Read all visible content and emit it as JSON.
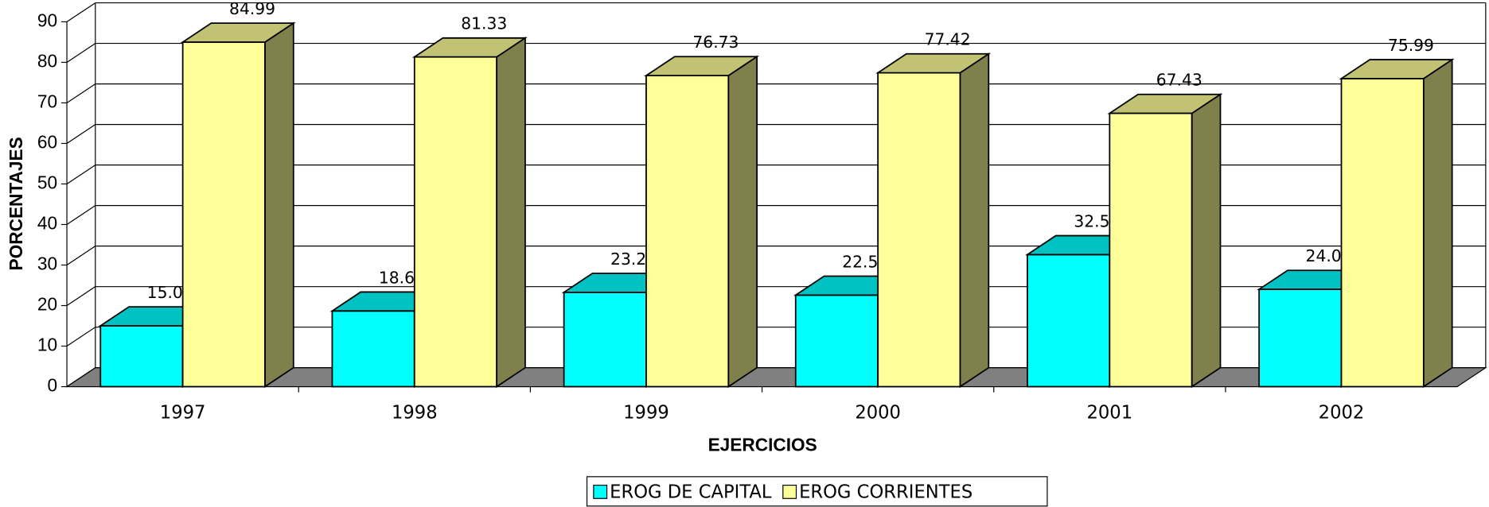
{
  "chart_data": {
    "type": "bar3d",
    "xlabel": "EJERCICIOS",
    "ylabel": "PORCENTAJES",
    "categories": [
      "1997",
      "1998",
      "1999",
      "2000",
      "2001",
      "2002"
    ],
    "series": [
      {
        "name": "EROG DE CAPITAL",
        "color": "#00ffff",
        "values": [
          15.01,
          18.67,
          23.27,
          22.58,
          32.57,
          24.01
        ]
      },
      {
        "name": "EROG CORRIENTES",
        "color": "#ffff99",
        "values": [
          84.99,
          81.33,
          76.73,
          77.42,
          67.43,
          75.99
        ]
      }
    ],
    "ylim": [
      0,
      90
    ],
    "yticks": [
      0,
      10,
      20,
      30,
      40,
      50,
      60,
      70,
      80,
      90
    ],
    "grid": true,
    "legend": "bottom"
  }
}
